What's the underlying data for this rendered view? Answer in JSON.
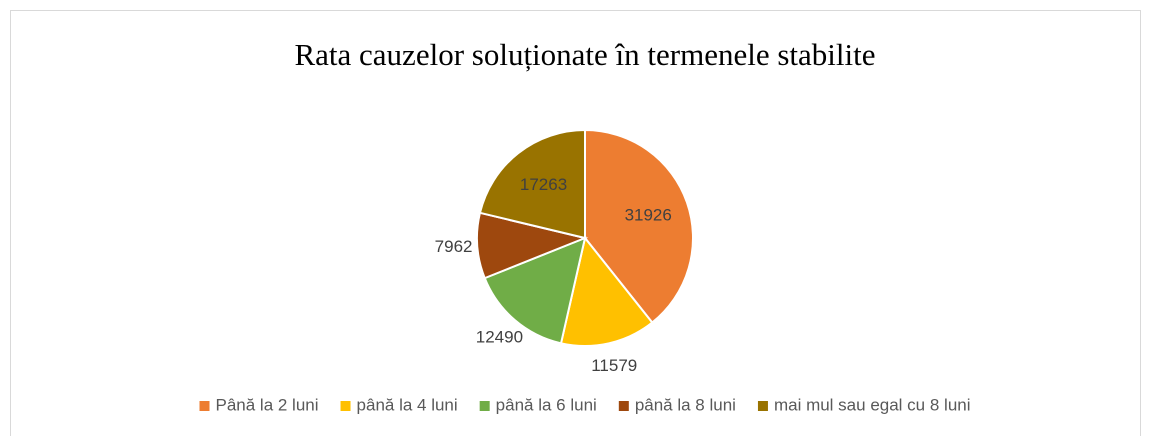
{
  "chart_data": {
    "type": "pie",
    "title": "Rata cauzelor soluționate în termenele stabilite",
    "categories": [
      "Până la 2 luni",
      "până la 4 luni",
      "până la 6 luni",
      "până la 8 luni",
      "mai mul sau egal cu 8 luni"
    ],
    "values": [
      31926,
      11579,
      12490,
      7962,
      17263
    ],
    "colors": [
      "#ed7d31",
      "#ffc000",
      "#70ad47",
      "#9e480e",
      "#997300"
    ],
    "legend": "bottom"
  }
}
